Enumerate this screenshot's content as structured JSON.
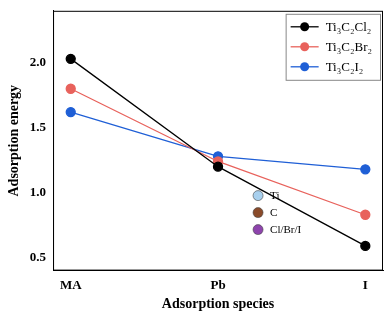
{
  "chart_data": {
    "type": "line",
    "x_label": "Adsorption species",
    "y_label": "Adsorption energy",
    "categories": [
      "MA",
      "Pb",
      "I"
    ],
    "series": [
      {
        "name": "Ti₃C₂Cl₂",
        "color": "#000000",
        "values": [
          2.03,
          1.2,
          0.59
        ],
        "marker": "circle",
        "line_style": "solid"
      },
      {
        "name": "Ti₃C₂Br₂",
        "color": "#e8625c",
        "values": [
          1.8,
          1.24,
          0.83
        ],
        "marker": "circle",
        "line_style": "solid"
      },
      {
        "name": "Ti₃C₂I₂",
        "color": "#1f5fd6",
        "values": [
          1.62,
          1.28,
          1.18
        ],
        "marker": "circle",
        "line_style": "solid"
      }
    ],
    "ylim": [
      0.4,
      2.4
    ],
    "yticks": [
      0.5,
      {
        "value": 1,
        "label": "1.0"
      },
      1.5,
      {
        "value": 2,
        "label": "2.0"
      }
    ],
    "grid": false,
    "legend": "upper right",
    "annotations": [
      {
        "text": "Ti",
        "color": "#a8d0ee"
      },
      {
        "text": "C",
        "color": "#8a4b2a"
      },
      {
        "text": "Cl/Br/I",
        "color": "#8e44ad"
      }
    ]
  }
}
